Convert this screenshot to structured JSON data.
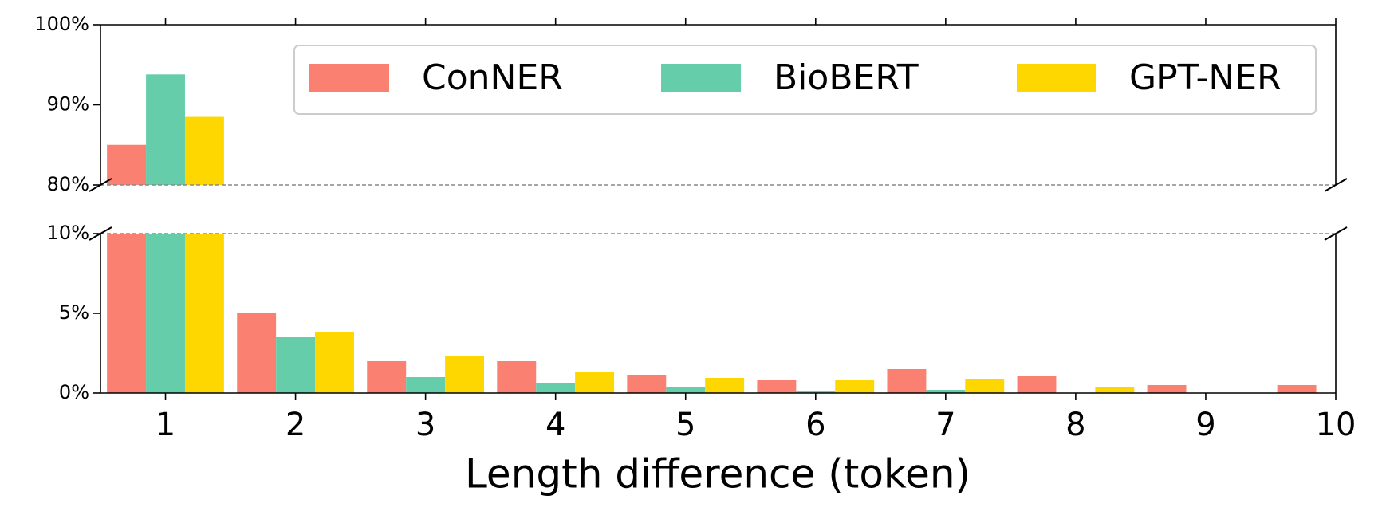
{
  "chart_data": {
    "type": "bar",
    "x_label": "Length difference (token)",
    "x": [
      1,
      2,
      3,
      4,
      5,
      6,
      7,
      8,
      9,
      10
    ],
    "xlim": [
      0.5,
      10
    ],
    "xticks": [
      1,
      2,
      3,
      4,
      5,
      6,
      7,
      8,
      9,
      10
    ],
    "ylim_top": [
      80,
      100
    ],
    "yticks_top": [
      {
        "value": 80,
        "label": "80%"
      },
      {
        "value": 90,
        "label": "90%"
      },
      {
        "value": 100,
        "label": "100%"
      }
    ],
    "ylim": [
      0,
      10
    ],
    "yticks": [
      {
        "value": 0,
        "label": "0%"
      },
      {
        "value": 5,
        "label": "5%"
      },
      {
        "value": 10,
        "label": "10%"
      }
    ],
    "bar_width": 0.3,
    "legend": "upper right",
    "series": [
      {
        "name": "ConNER",
        "color": "#fa8072",
        "values": [
          85,
          5.0,
          2.0,
          2.0,
          1.1,
          0.8,
          1.5,
          1.05,
          0.5,
          0.5
        ]
      },
      {
        "name": "BioBERT",
        "color": "#66cdaa",
        "values": [
          93.8,
          3.5,
          1.0,
          0.6,
          0.35,
          0.1,
          0.2,
          0,
          0,
          0
        ]
      },
      {
        "name": "GPT-NER",
        "color": "#ffd700",
        "values": [
          88.5,
          3.8,
          2.3,
          1.3,
          0.95,
          0.8,
          0.9,
          0.35,
          0,
          0
        ]
      }
    ]
  }
}
